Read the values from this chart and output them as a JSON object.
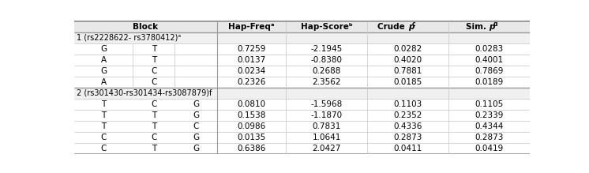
{
  "header_bg": "#e8e8e8",
  "section_bg": "#f0f0f0",
  "data_bg": "#ffffff",
  "border_dark": "#999999",
  "border_light": "#cccccc",
  "section1_label": "1 (rs2228622- rs3780412)ᵃ",
  "section2_label": "2 (rs301430-rs301434-rs3087879)ḟ",
  "rows_block1": [
    [
      "G",
      "T",
      "",
      "0.7259",
      "-2.1945",
      "0.0282",
      "0.0283"
    ],
    [
      "A",
      "T",
      "",
      "0.0137",
      "-0.8380",
      "0.4020",
      "0.4001"
    ],
    [
      "G",
      "C",
      "",
      "0.0234",
      "0.2688",
      "0.7881",
      "0.7869"
    ],
    [
      "A",
      "C",
      "",
      "0.2326",
      "2.3562",
      "0.0185",
      "0.0189"
    ]
  ],
  "rows_block2": [
    [
      "T",
      "C",
      "G",
      "0.0810",
      "-1.5968",
      "0.1103",
      "0.1105"
    ],
    [
      "T",
      "T",
      "G",
      "0.1538",
      "-1.1870",
      "0.2352",
      "0.2339"
    ],
    [
      "T",
      "T",
      "C",
      "0.0986",
      "0.7831",
      "0.4336",
      "0.4344"
    ],
    [
      "C",
      "C",
      "G",
      "0.0135",
      "1.0641",
      "0.2873",
      "0.2873"
    ],
    [
      "C",
      "T",
      "G",
      "0.6386",
      "2.0427",
      "0.0411",
      "0.0419"
    ]
  ],
  "col_props": [
    0.128,
    0.092,
    0.092,
    0.152,
    0.178,
    0.178,
    0.178
  ],
  "figsize": [
    7.46,
    2.19
  ],
  "dpi": 100
}
